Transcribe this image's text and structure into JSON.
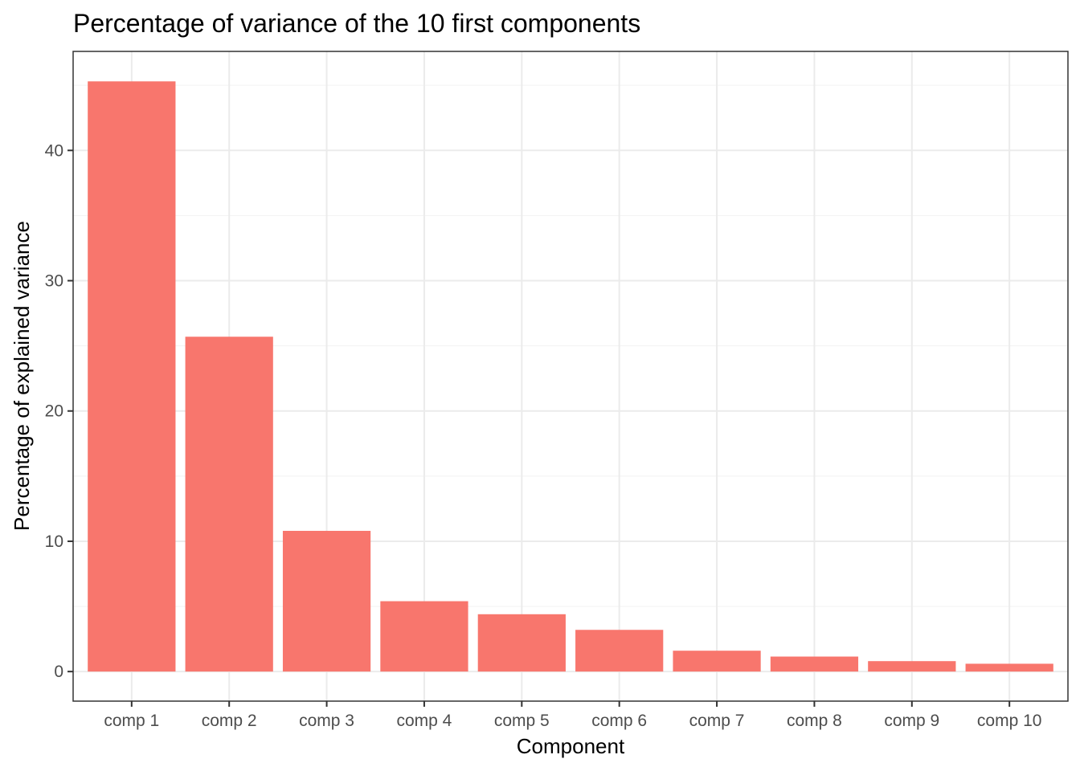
{
  "chart_data": {
    "type": "bar",
    "title": "Percentage of variance of the 10 first components",
    "xlabel": "Component",
    "ylabel": "Percentage of explained variance",
    "categories": [
      "comp 1",
      "comp 2",
      "comp 3",
      "comp 4",
      "comp 5",
      "comp 6",
      "comp 7",
      "comp 8",
      "comp 9",
      "comp 10"
    ],
    "values": [
      45.3,
      25.7,
      10.8,
      5.4,
      4.4,
      3.2,
      1.6,
      1.15,
      0.8,
      0.6
    ],
    "ylim": [
      -2.27,
      47.6
    ],
    "yticks": [
      0,
      10,
      20,
      30,
      40
    ],
    "bar_color": "#F8766D",
    "grid": true,
    "legend": "none"
  }
}
